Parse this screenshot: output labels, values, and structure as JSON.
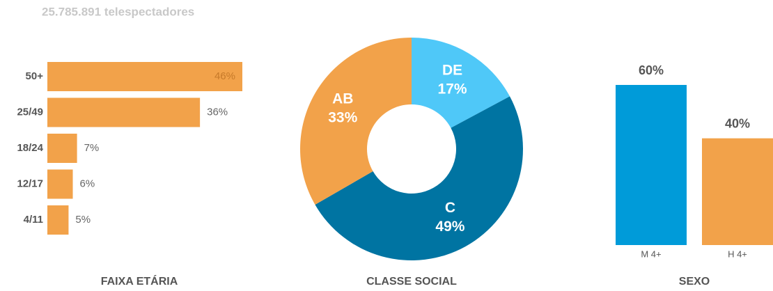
{
  "header": "25.785.891 telespectadores",
  "chart_data": [
    {
      "type": "hbar",
      "title": "FAIXA ETÁRIA",
      "categories": [
        "50+",
        "25/49",
        "18/24",
        "12/17",
        "4/11"
      ],
      "values": [
        46,
        36,
        7,
        6,
        5
      ],
      "value_labels": [
        "46%",
        "36%",
        "7%",
        "6%",
        "5%"
      ],
      "color": "#f2a24a"
    },
    {
      "type": "donut",
      "title": "CLASSE SOCIAL",
      "categories": [
        "DE",
        "C",
        "AB"
      ],
      "values": [
        17,
        49,
        33
      ],
      "value_labels": [
        "17%",
        "49%",
        "33%"
      ],
      "colors": [
        "#4fc8f8",
        "#0074a2",
        "#f2a24a"
      ]
    },
    {
      "type": "bar",
      "title": "SEXO",
      "categories": [
        "M 4+",
        "H 4+"
      ],
      "values": [
        60,
        40
      ],
      "value_labels": [
        "60%",
        "40%"
      ],
      "colors": [
        "#009bd9",
        "#f2a24a"
      ]
    }
  ]
}
